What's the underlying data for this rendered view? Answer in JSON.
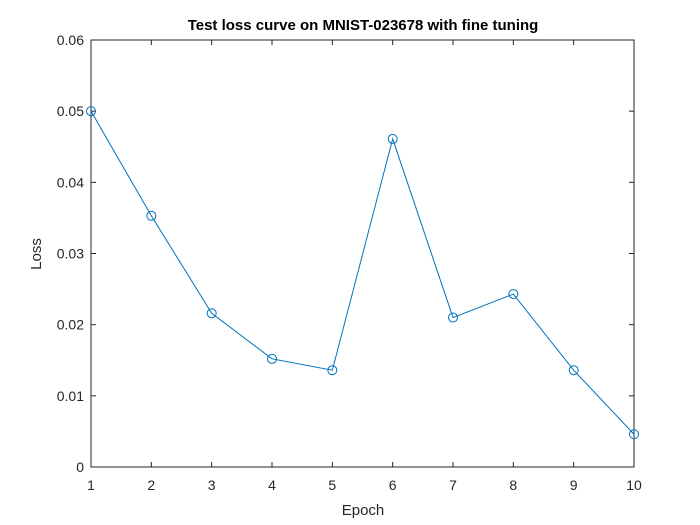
{
  "chart_data": {
    "type": "line",
    "title": "Test loss curve on MNIST-023678 with fine tuning",
    "xlabel": "Epoch",
    "ylabel": "Loss",
    "xlim": [
      1,
      10
    ],
    "ylim": [
      0,
      0.06
    ],
    "x_ticks": [
      1,
      2,
      3,
      4,
      5,
      6,
      7,
      8,
      9,
      10
    ],
    "y_ticks": [
      0,
      0.01,
      0.02,
      0.03,
      0.04,
      0.05,
      0.06
    ],
    "y_tick_labels": [
      "0",
      "0.01",
      "0.02",
      "0.03",
      "0.04",
      "0.05",
      "0.06"
    ],
    "grid": false,
    "marker": "circle",
    "series": [
      {
        "x": [
          1,
          2,
          3,
          4,
          5,
          6,
          7,
          8,
          9,
          10
        ],
        "values": [
          0.05,
          0.0353,
          0.0216,
          0.0152,
          0.0136,
          0.0461,
          0.021,
          0.0243,
          0.0136,
          0.0046
        ],
        "color": "#0072BD"
      }
    ]
  }
}
